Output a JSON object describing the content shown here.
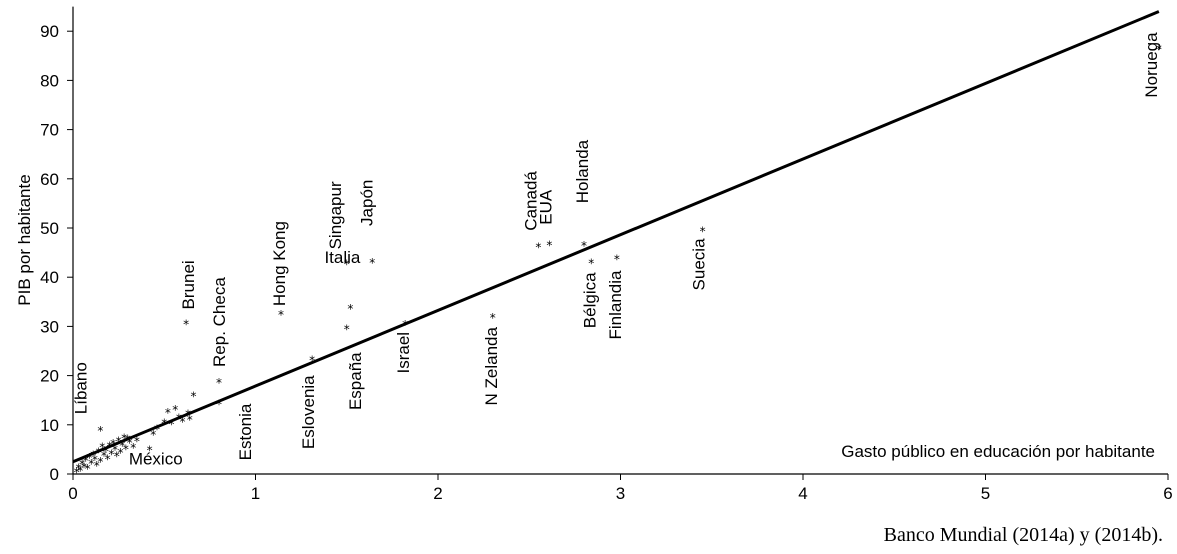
{
  "chart_data": {
    "type": "scatter",
    "title": "",
    "xlabel": "Gasto público en educación por habitante",
    "ylabel": "PIB por habitante",
    "xlim": [
      0,
      6
    ],
    "ylim": [
      0,
      95
    ],
    "xticks": [
      "0",
      "1",
      "2",
      "3",
      "4",
      "5",
      "6"
    ],
    "yticks": [
      "0",
      "10",
      "20",
      "30",
      "40",
      "50",
      "60",
      "70",
      "80",
      "90"
    ],
    "grid": false,
    "marker": "*",
    "trendline": {
      "x": [
        0,
        5.95
      ],
      "y": [
        2.5,
        94
      ]
    },
    "labeled_points": [
      {
        "name": "Noruega",
        "x": 5.95,
        "y": 86.5
      },
      {
        "name": "Holanda",
        "x": 2.8,
        "y": 46.5
      },
      {
        "name": "Canadá",
        "x": 2.55,
        "y": 46.2
      },
      {
        "name": "EUA",
        "x": 2.61,
        "y": 46.6
      },
      {
        "name": "Suecia",
        "x": 3.45,
        "y": 49.5
      },
      {
        "name": "Bélgica",
        "x": 2.84,
        "y": 43.0
      },
      {
        "name": "Finlandia",
        "x": 2.98,
        "y": 43.8
      },
      {
        "name": "N Zelanda",
        "x": 2.3,
        "y": 31.9
      },
      {
        "name": "Israel",
        "x": 1.82,
        "y": 30.5
      },
      {
        "name": "Singapur",
        "x": 1.5,
        "y": 42.8
      },
      {
        "name": "Japón",
        "x": 1.64,
        "y": 43.1
      },
      {
        "name": "Italia",
        "x": 1.52,
        "y": 33.7
      },
      {
        "name": "España",
        "x": 1.5,
        "y": 29.6
      },
      {
        "name": "Hong Kong",
        "x": 1.14,
        "y": 32.5
      },
      {
        "name": "Eslovenia",
        "x": 1.31,
        "y": 23.3
      },
      {
        "name": "Estonia",
        "x": 0.8,
        "y": 14.3
      },
      {
        "name": "Rep. Checa",
        "x": 0.8,
        "y": 18.7
      },
      {
        "name": "Brunei",
        "x": 0.62,
        "y": 30.6
      },
      {
        "name": "Líbano",
        "x": 0.15,
        "y": 8.9
      },
      {
        "name": "México",
        "x": 0.3,
        "y": 7.2
      }
    ],
    "other_points": [
      [
        0.02,
        0.5
      ],
      [
        0.03,
        1.3
      ],
      [
        0.04,
        0.8
      ],
      [
        0.05,
        2.1
      ],
      [
        0.06,
        1.5
      ],
      [
        0.07,
        2.8
      ],
      [
        0.08,
        1.2
      ],
      [
        0.09,
        3.5
      ],
      [
        0.1,
        2.2
      ],
      [
        0.11,
        4.0
      ],
      [
        0.12,
        3.0
      ],
      [
        0.13,
        1.8
      ],
      [
        0.14,
        4.6
      ],
      [
        0.15,
        2.6
      ],
      [
        0.16,
        5.6
      ],
      [
        0.17,
        3.9
      ],
      [
        0.18,
        4.8
      ],
      [
        0.19,
        3.2
      ],
      [
        0.2,
        5.8
      ],
      [
        0.21,
        4.2
      ],
      [
        0.22,
        6.3
      ],
      [
        0.23,
        5.1
      ],
      [
        0.24,
        3.8
      ],
      [
        0.25,
        6.8
      ],
      [
        0.26,
        4.5
      ],
      [
        0.27,
        5.9
      ],
      [
        0.28,
        7.4
      ],
      [
        0.29,
        5.2
      ],
      [
        0.31,
        6.5
      ],
      [
        0.33,
        5.5
      ],
      [
        0.35,
        6.8
      ],
      [
        0.42,
        5.0
      ],
      [
        0.44,
        8.1
      ],
      [
        0.46,
        9.2
      ],
      [
        0.5,
        10.5
      ],
      [
        0.52,
        12.6
      ],
      [
        0.54,
        10.3
      ],
      [
        0.56,
        13.2
      ],
      [
        0.58,
        11.5
      ],
      [
        0.6,
        10.8
      ],
      [
        0.63,
        12.3
      ],
      [
        0.64,
        11.2
      ],
      [
        0.66,
        16.0
      ]
    ]
  },
  "source_note": "Banco Mundial (2014a) y (2014b)."
}
